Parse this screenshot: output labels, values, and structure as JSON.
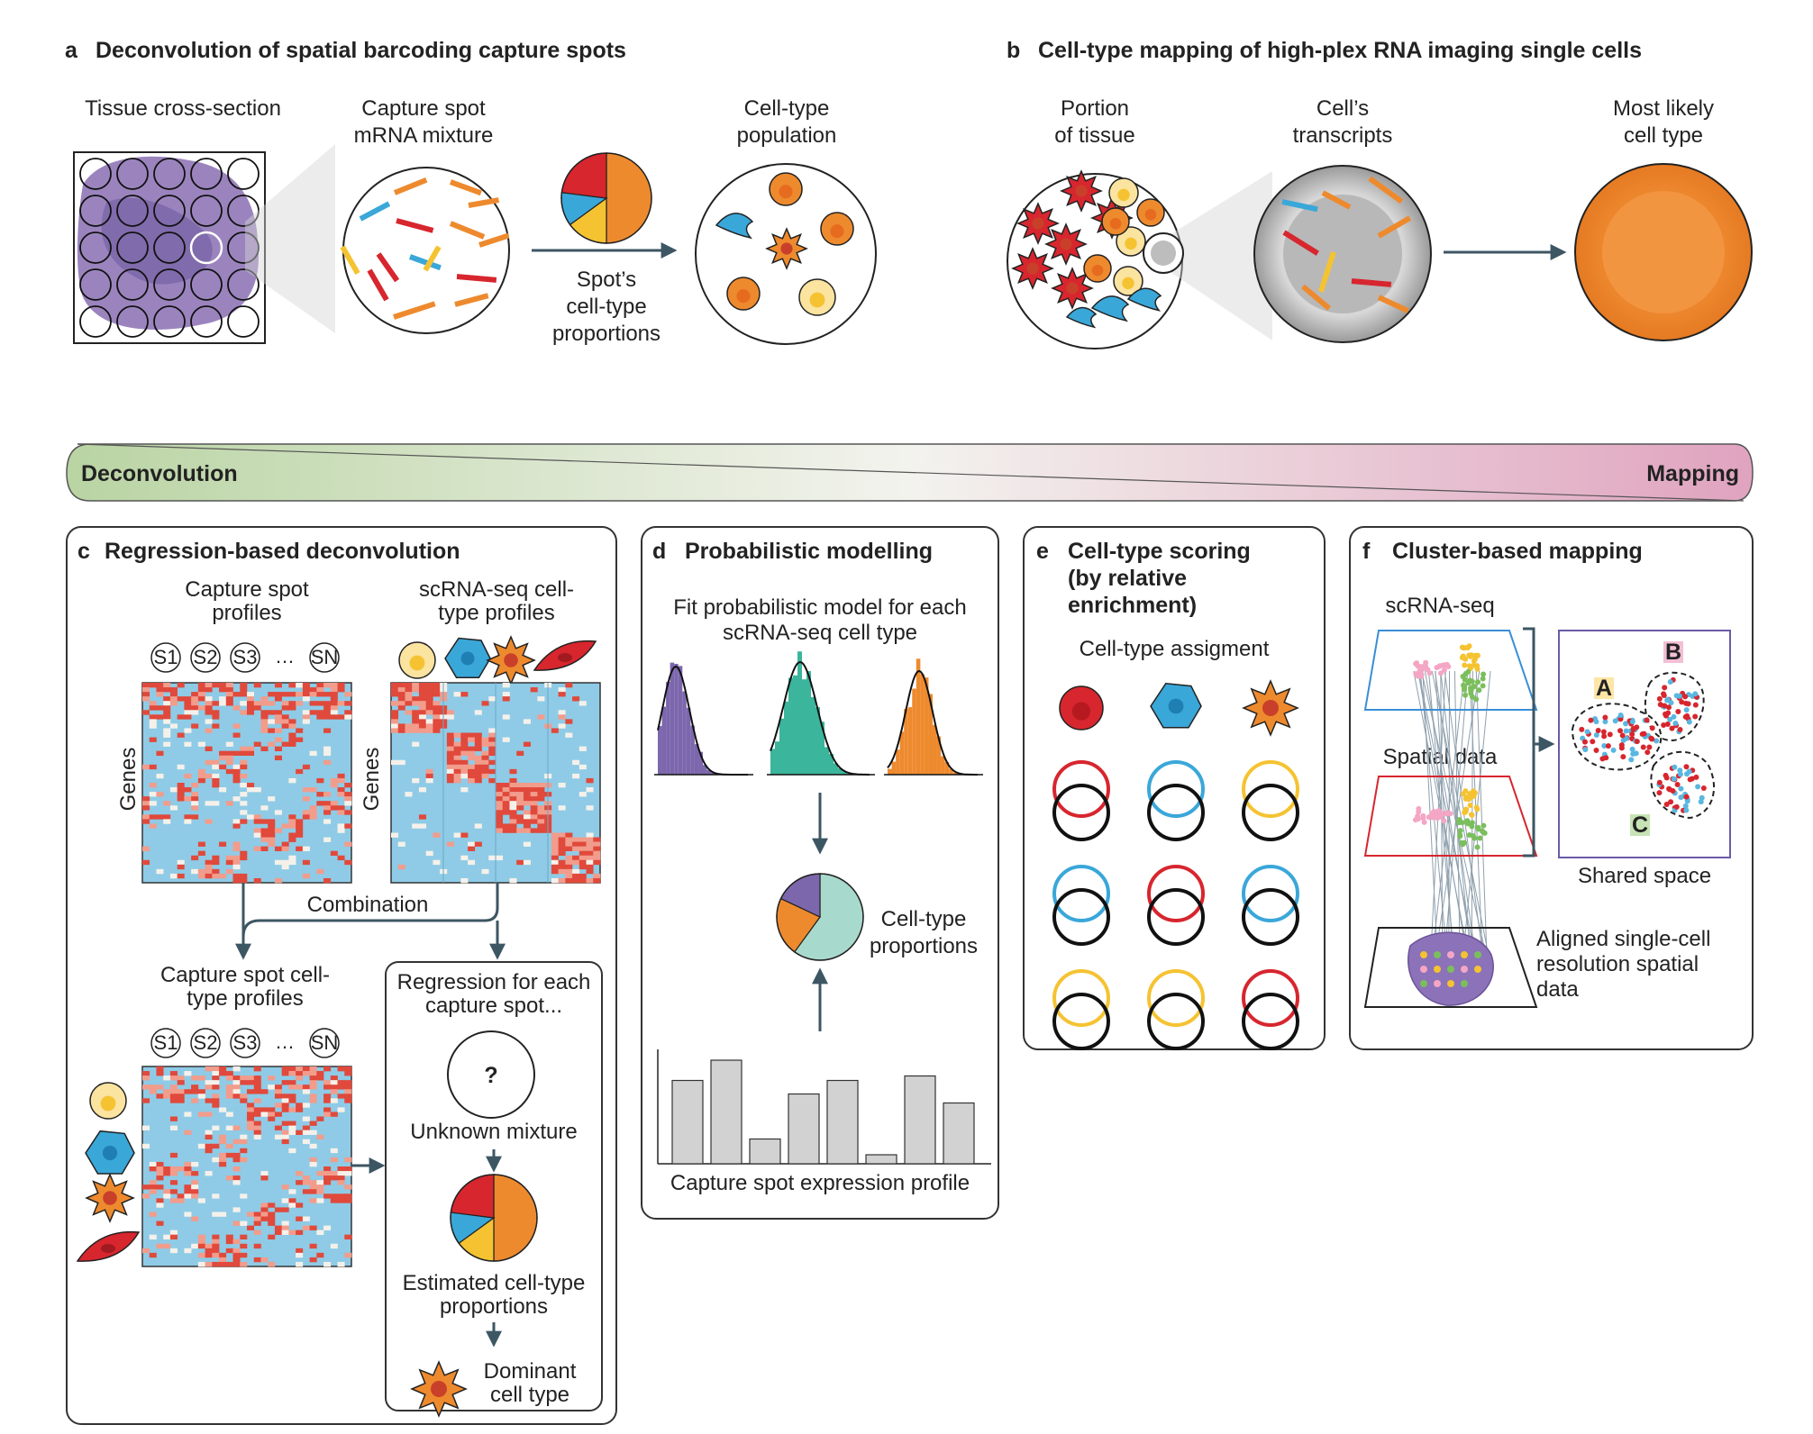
{
  "panel_a": {
    "letter": "a",
    "title": "Deconvolution of spatial barcoding capture spots",
    "tissue_label": "Tissue cross-section",
    "mixture_label_1": "Capture spot",
    "mixture_label_2": "mRNA mixture",
    "population_label_1": "Cell-type",
    "population_label_2": "population",
    "proportions_label_1": "Spot’s",
    "proportions_label_2": "cell-type",
    "proportions_label_3": "proportions"
  },
  "panel_b": {
    "letter": "b",
    "title": "Cell-type mapping of high-plex RNA imaging single cells",
    "portion_label_1": "Portion",
    "portion_label_2": "of tissue",
    "transcripts_label_1": "Cell’s",
    "transcripts_label_2": "transcripts",
    "likely_label_1": "Most likely",
    "likely_label_2": "cell type"
  },
  "spectrum": {
    "left": "Deconvolution",
    "right": "Mapping"
  },
  "panel_c": {
    "letter": "c",
    "title": "Regression-based deconvolution",
    "capture_profiles_1": "Capture spot",
    "capture_profiles_2": "profiles",
    "scrna_profiles_1": "scRNA-seq cell-",
    "scrna_profiles_2": "type profiles",
    "spots": [
      "S1",
      "S2",
      "S3",
      "…",
      "SN"
    ],
    "genes": "Genes",
    "combination": "Combination",
    "capture_celltype_1": "Capture spot cell-",
    "capture_celltype_2": "type profiles",
    "regression_1": "Regression for each",
    "regression_2": "capture spot...",
    "unknown_mark": "?",
    "unknown_mixture": "Unknown mixture",
    "estimated_1": "Estimated cell-type",
    "estimated_2": "proportions",
    "dominant_1": "Dominant",
    "dominant_2": "cell type"
  },
  "panel_d": {
    "letter": "d",
    "title": "Probabilistic modelling",
    "fit_1": "Fit probabilistic model for each",
    "fit_2": "scRNA-seq cell type",
    "proportions_1": "Cell-type",
    "proportions_2": "proportions",
    "expression_label": "Capture spot expression profile",
    "expression_bars": [
      0.74,
      0.92,
      0.22,
      0.62,
      0.74,
      0.08,
      0.78,
      0.54
    ]
  },
  "panel_e": {
    "letter": "e",
    "title_1": "Cell-type scoring",
    "title_2": "(by relative",
    "title_3": "enrichment)",
    "assignment": "Cell-type assigment"
  },
  "panel_f": {
    "letter": "f",
    "title": "Cluster-based mapping",
    "scrna_label": "scRNA-seq",
    "spatial_label": "Spatial data",
    "shared_space": "Shared space",
    "cluster_a": "A",
    "cluster_b": "B",
    "cluster_c": "C",
    "aligned_1": "Aligned single-cell",
    "aligned_2": "resolution spatial",
    "aligned_3": "data"
  },
  "colors": {
    "red": "#d7262e",
    "orange": "#ee8a2e",
    "blue": "#3aa7d9",
    "yellow": "#f5c332",
    "purple": "#7c67ad",
    "teal": "#3bb59b",
    "arrow": "#3d5663",
    "heat_bg": "#8fcbe6"
  }
}
